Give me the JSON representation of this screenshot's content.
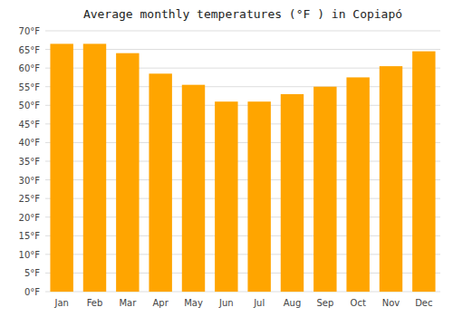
{
  "chart_data": {
    "type": "bar",
    "title": "Average monthly temperatures (°F ) in Copiapó",
    "categories": [
      "Jan",
      "Feb",
      "Mar",
      "Apr",
      "May",
      "Jun",
      "Jul",
      "Aug",
      "Sep",
      "Oct",
      "Nov",
      "Dec"
    ],
    "values": [
      66.5,
      66.5,
      64.0,
      58.5,
      55.5,
      51.0,
      51.0,
      53.0,
      55.0,
      57.5,
      60.5,
      64.5
    ],
    "color": "#FFA500",
    "ylim": [
      0,
      70
    ],
    "yticks": [
      {
        "value": 0,
        "label": "0°F"
      },
      {
        "value": 5,
        "label": "5°F"
      },
      {
        "value": 10,
        "label": "10°F"
      },
      {
        "value": 15,
        "label": "15°F"
      },
      {
        "value": 20,
        "label": "20°F"
      },
      {
        "value": 25,
        "label": "25°F"
      },
      {
        "value": 30,
        "label": "30°F"
      },
      {
        "value": 35,
        "label": "35°F"
      },
      {
        "value": 40,
        "label": "40°F"
      },
      {
        "value": 45,
        "label": "45°F"
      },
      {
        "value": 50,
        "label": "50°F"
      },
      {
        "value": 55,
        "label": "55°F"
      },
      {
        "value": 60,
        "label": "60°F"
      },
      {
        "value": 65,
        "label": "65°F"
      },
      {
        "value": 70,
        "label": "70°F"
      }
    ],
    "grid": true
  }
}
